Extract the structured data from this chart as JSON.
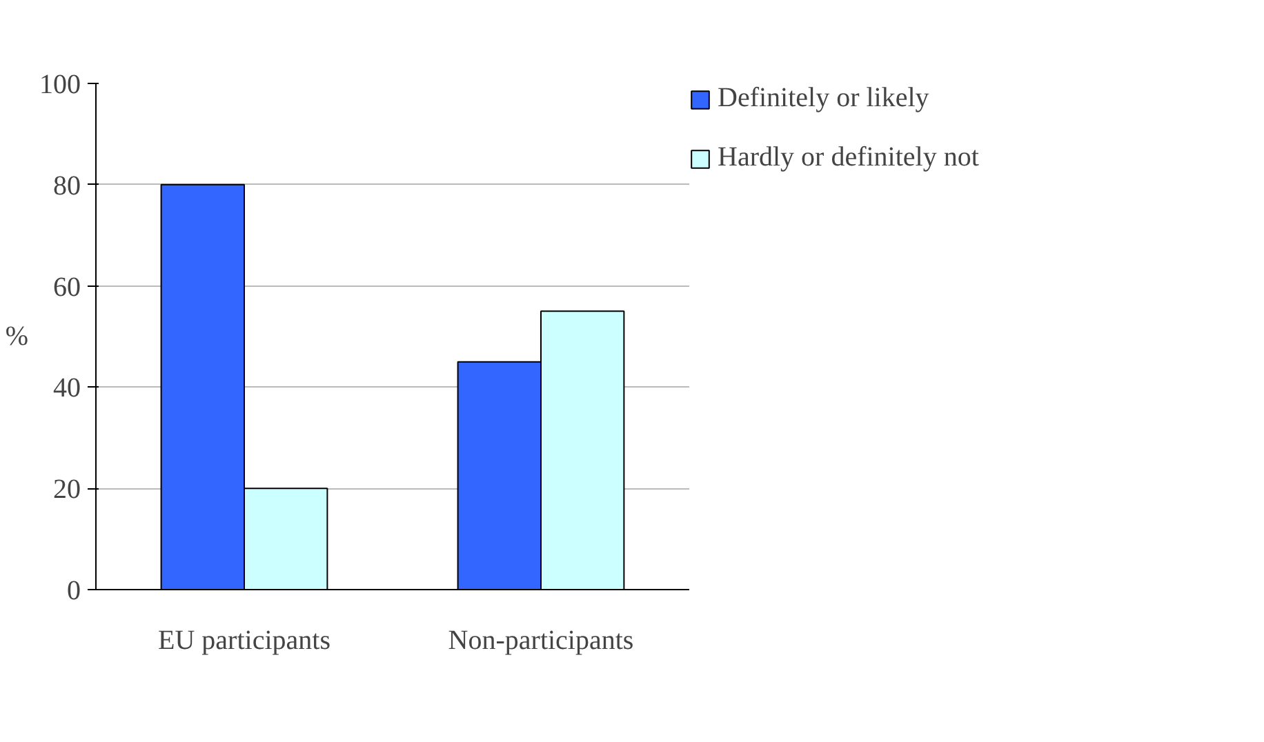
{
  "chart_data": {
    "type": "bar",
    "categories": [
      "EU participants",
      "Non-participants"
    ],
    "ylabel": "%",
    "ylim": [
      0,
      100
    ],
    "yticks": [
      0,
      20,
      40,
      60,
      80,
      100
    ],
    "grid": "y",
    "legend": "right",
    "series": [
      {
        "name": "Definitely or likely",
        "color": "#3366ff",
        "values": [
          80,
          45
        ]
      },
      {
        "name": "Hardly or definitely not",
        "color": "#ccffff",
        "values": [
          20,
          55
        ]
      }
    ]
  }
}
